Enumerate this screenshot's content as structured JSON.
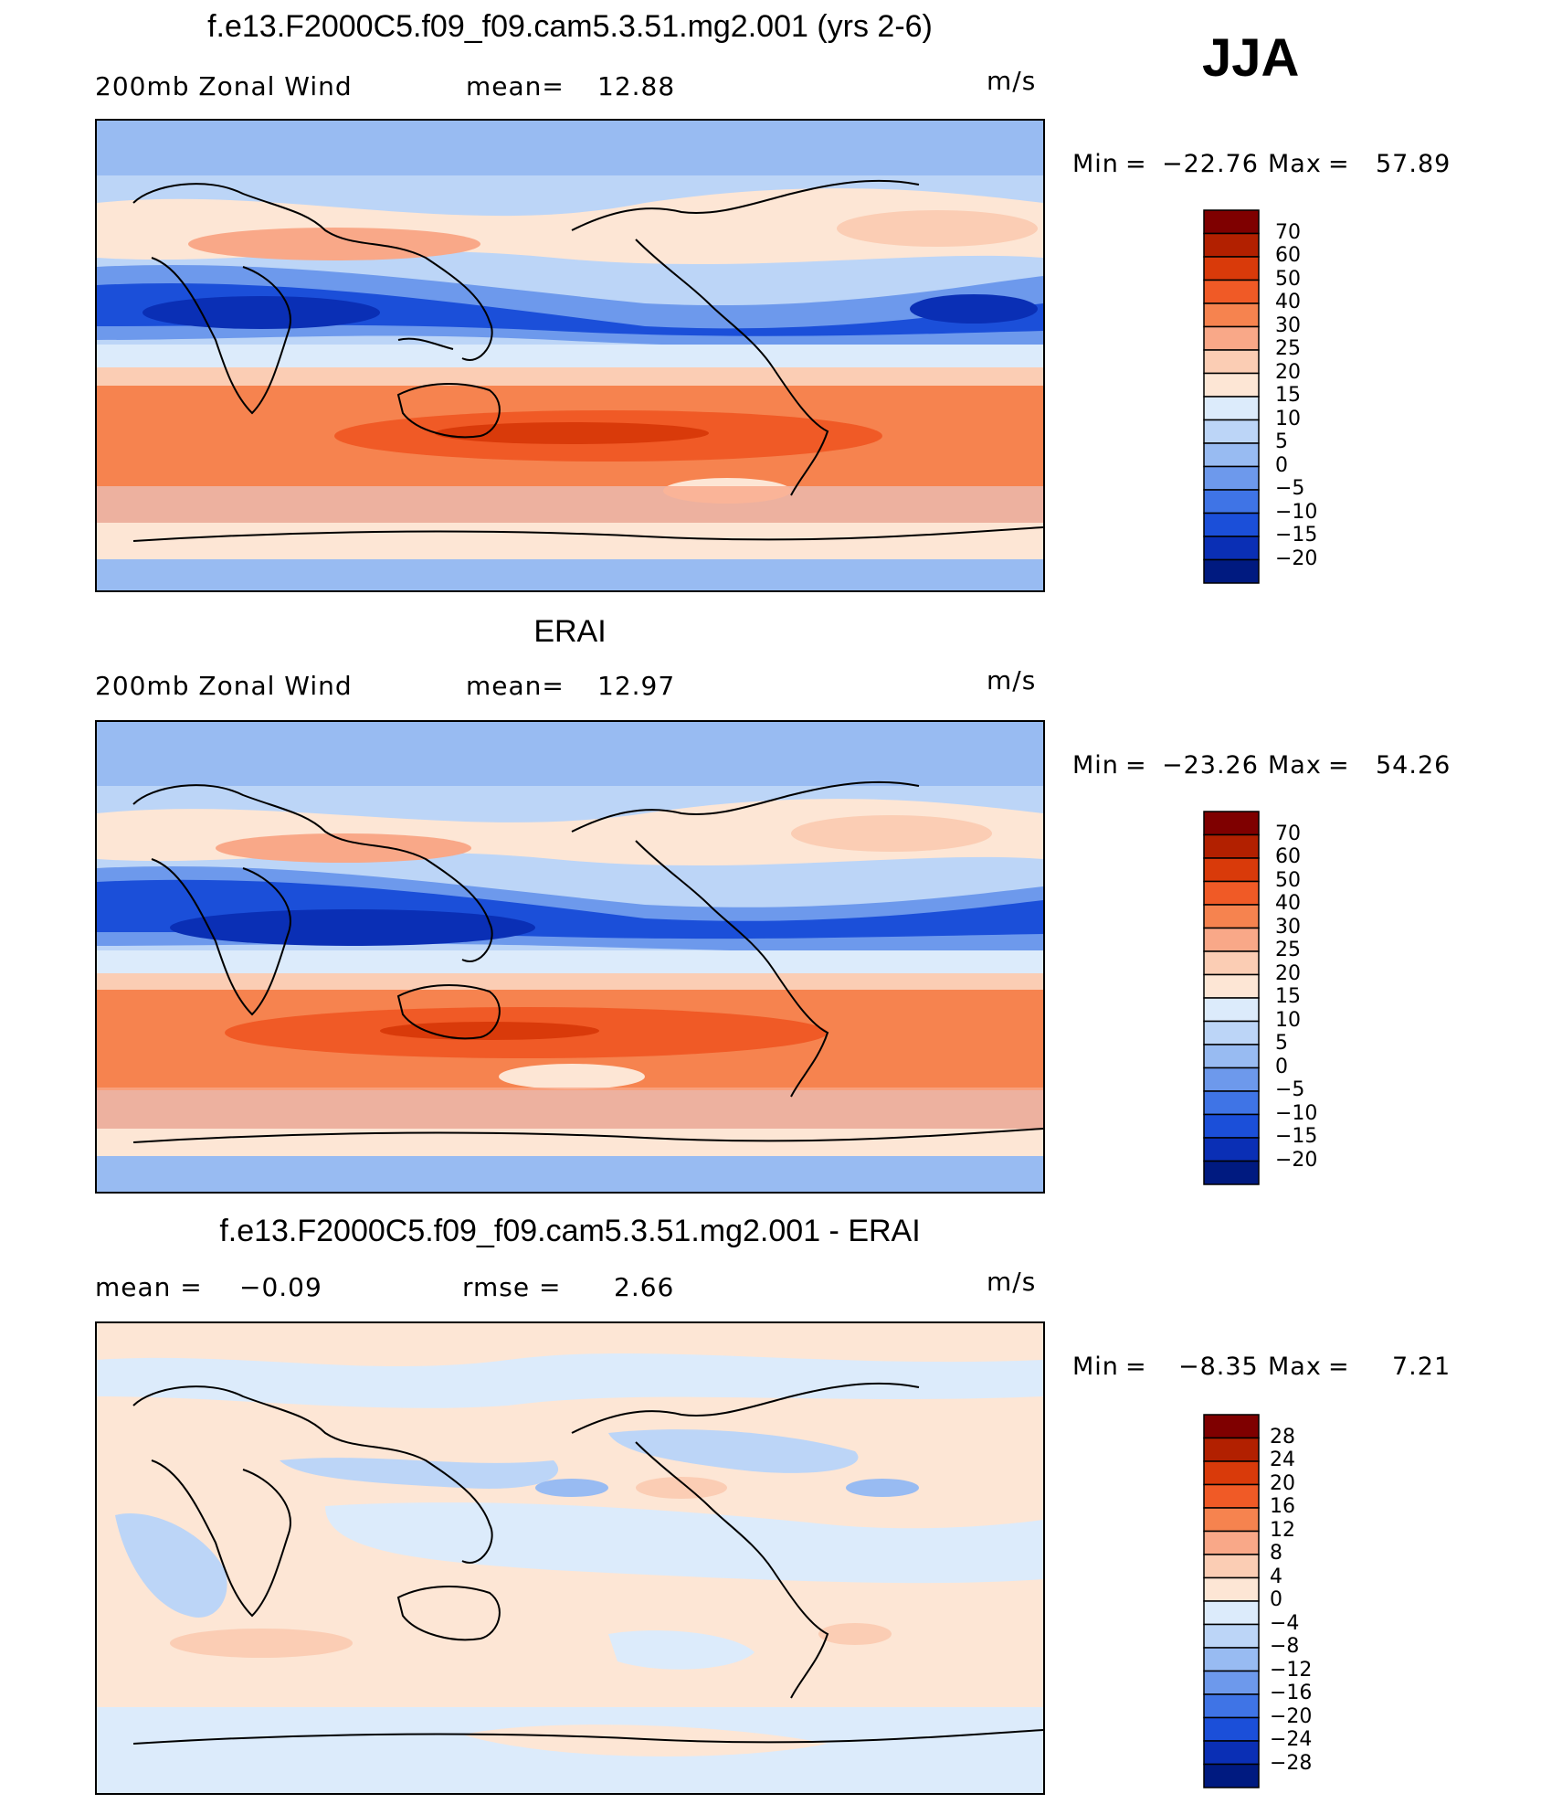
{
  "header": {
    "season": "JJA"
  },
  "panels": [
    {
      "title": "f.e13.F2000C5.f09_f09.cam5.3.51.mg2.001 (yrs 2-6)",
      "left_label": "200mb Zonal Wind",
      "stat_label": "mean=",
      "stat_value": "12.88",
      "unit": "m/s",
      "min_label": "Min",
      "min_value": "−22.76",
      "max_label": "Max",
      "max_value": "57.89",
      "colorbar_ticks": [
        "70",
        "60",
        "50",
        "40",
        "30",
        "25",
        "20",
        "15",
        "10",
        "5",
        "0",
        "−5",
        "−10",
        "−15",
        "−20"
      ]
    },
    {
      "title": "ERAI",
      "left_label": "200mb Zonal Wind",
      "stat_label": "mean=",
      "stat_value": "12.97",
      "unit": "m/s",
      "min_label": "Min",
      "min_value": "−23.26",
      "max_label": "Max",
      "max_value": "54.26",
      "colorbar_ticks": [
        "70",
        "60",
        "50",
        "40",
        "30",
        "25",
        "20",
        "15",
        "10",
        "5",
        "0",
        "−5",
        "−10",
        "−15",
        "−20"
      ]
    },
    {
      "title": "f.e13.F2000C5.f09_f09.cam5.3.51.mg2.001 - ERAI",
      "left_label": "mean =",
      "left_value": "−0.09",
      "stat_label": "rmse =",
      "stat_value": "2.66",
      "unit": "m/s",
      "min_label": "Min",
      "min_value": "−8.35",
      "max_label": "Max",
      "max_value": "7.21",
      "colorbar_ticks": [
        "28",
        "24",
        "20",
        "16",
        "12",
        "8",
        "4",
        "0",
        "−4",
        "−8",
        "−12",
        "−16",
        "−20",
        "−24",
        "−28"
      ]
    }
  ],
  "colors": {
    "abs_scale": [
      "#7f0000",
      "#b22000",
      "#d93a0a",
      "#f05a26",
      "#f6834f",
      "#f9a888",
      "#fbcdb4",
      "#fde6d5",
      "#dcebfb",
      "#bcd5f7",
      "#98bbf2",
      "#6d99ec",
      "#3f74e6",
      "#1b4fd9",
      "#0a2fb5",
      "#001a80"
    ],
    "diff_scale": [
      "#7f0000",
      "#b22000",
      "#d93a0a",
      "#f05a26",
      "#f6834f",
      "#f9a888",
      "#fbcdb4",
      "#fde6d5",
      "#dcebfb",
      "#bcd5f7",
      "#98bbf2",
      "#6d99ec",
      "#3f74e6",
      "#1b4fd9",
      "#0a2fb5",
      "#001a80"
    ]
  }
}
